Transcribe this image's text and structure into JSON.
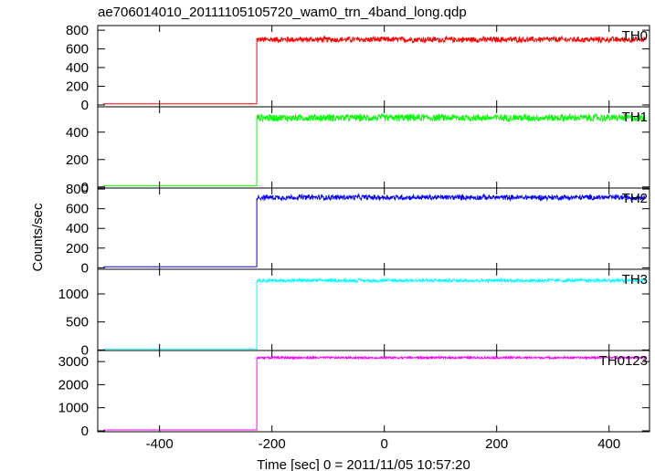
{
  "title": "ae706014010_20111105105720_wam0_trn_4band_long.qdp",
  "chart_data": {
    "type": "line",
    "xlabel": "Time [sec] 0 = 2011/11/05 10:57:20",
    "ylabel": "Counts/sec",
    "xlim": [
      -510,
      472
    ],
    "x_ticks": [
      -400,
      -200,
      0,
      200,
      400
    ],
    "grid": false,
    "step_time": -227,
    "data_end": 465,
    "panels": [
      {
        "name": "TH0",
        "color": "#ff0000",
        "ylim": [
          -20,
          850
        ],
        "y_ticks": [
          0,
          200,
          400,
          600,
          800
        ],
        "pre_level": 12,
        "post_level": 700,
        "noise": 35
      },
      {
        "name": "TH1",
        "color": "#00ff00",
        "ylim": [
          -8,
          585
        ],
        "y_ticks": [
          0,
          200,
          400
        ],
        "pre_level": 8,
        "post_level": 505,
        "noise": 30
      },
      {
        "name": "TH2",
        "color": "#0000ff",
        "ylim": [
          -15,
          810
        ],
        "y_ticks": [
          0,
          200,
          400,
          600,
          800
        ],
        "pre_level": 10,
        "post_level": 715,
        "noise": 30
      },
      {
        "name": "TH3",
        "color": "#00ffff",
        "ylim": [
          -10,
          1440
        ],
        "y_ticks": [
          0,
          500,
          1000
        ],
        "pre_level": 20,
        "post_level": 1240,
        "noise": 35
      },
      {
        "name": "TH0123",
        "color": "#ff00ff",
        "ylim": [
          -40,
          3480
        ],
        "y_ticks": [
          0,
          1000,
          2000,
          3000
        ],
        "pre_level": 40,
        "post_level": 3170,
        "noise": 55
      }
    ]
  }
}
